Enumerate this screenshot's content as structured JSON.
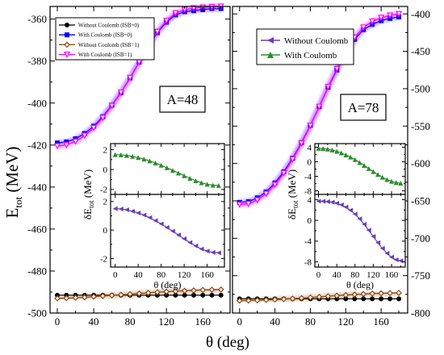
{
  "figure": {
    "xlabel": "θ (deg)",
    "ylabel_main": "E",
    "ylabel_sub": "tot",
    "ylabel_unit": " (MeV)"
  },
  "chart_data": [
    {
      "type": "line",
      "panel": "main-left",
      "annotation": "A=48",
      "xlim": [
        -8,
        190
      ],
      "ylim": [
        -500,
        -354
      ],
      "xticks": [
        0,
        40,
        80,
        120,
        160
      ],
      "yticks": [
        -500,
        -480,
        -460,
        -440,
        -420,
        -400,
        -380,
        -360
      ],
      "legend_position": "top-left",
      "series": [
        {
          "name": "Without Coulomb (ISB=0)",
          "color": "#000000",
          "marker": "circle",
          "x": [
            0,
            10,
            20,
            30,
            40,
            50,
            60,
            70,
            80,
            90,
            100,
            110,
            120,
            130,
            140,
            150,
            160,
            170,
            180
          ],
          "y": [
            -491.5,
            -491.5,
            -491.5,
            -491.5,
            -491.5,
            -491.5,
            -491.5,
            -491.5,
            -491.5,
            -491.5,
            -491.5,
            -491.5,
            -491.5,
            -491.5,
            -491.5,
            -491.5,
            -491.5,
            -491.5,
            -491.5
          ]
        },
        {
          "name": "With Coulomb (ISB=0)",
          "color": "#0000ff",
          "marker": "square",
          "x": [
            0,
            10,
            20,
            30,
            40,
            50,
            60,
            70,
            80,
            90,
            100,
            110,
            120,
            130,
            140,
            150,
            160,
            170,
            180
          ],
          "y": [
            -419,
            -418.5,
            -417,
            -414.5,
            -411,
            -406.5,
            -401,
            -395,
            -388,
            -380.5,
            -373,
            -366.5,
            -361.5,
            -358,
            -356.5,
            -356,
            -355.5,
            -355,
            -355
          ]
        },
        {
          "name": "Without Coulomb (ISB=1)",
          "color": "#8b4513",
          "marker": "diamond",
          "x": [
            0,
            10,
            20,
            30,
            40,
            50,
            60,
            70,
            80,
            90,
            100,
            110,
            120,
            130,
            140,
            150,
            160,
            170,
            180
          ],
          "y": [
            -493,
            -492.9,
            -492.7,
            -492.5,
            -492.2,
            -491.9,
            -491.6,
            -491.3,
            -491,
            -490.7,
            -490.4,
            -490.1,
            -489.8,
            -489.6,
            -489.4,
            -489.2,
            -489,
            -488.9,
            -488.8
          ]
        },
        {
          "name": "With Coulomb (ISB=1)",
          "color": "#ff00ff",
          "marker": "triangle-down",
          "x": [
            0,
            10,
            20,
            30,
            40,
            50,
            60,
            70,
            80,
            90,
            100,
            110,
            120,
            130,
            140,
            150,
            160,
            170,
            180
          ],
          "y": [
            -420.5,
            -420,
            -418.3,
            -415.5,
            -411.8,
            -407,
            -401.3,
            -395,
            -388,
            -380.5,
            -372.8,
            -366,
            -360.8,
            -357.2,
            -355.5,
            -354.8,
            -354.4,
            -354.2,
            -354
          ]
        }
      ]
    },
    {
      "type": "line",
      "panel": "main-right",
      "annotation": "A=78",
      "xlim": [
        -8,
        190
      ],
      "ylim": [
        -800,
        -390
      ],
      "xticks": [
        0,
        40,
        80,
        120,
        160
      ],
      "yticks": [
        -800,
        -750,
        -700,
        -650,
        -600,
        -550,
        -500,
        -450,
        -400
      ],
      "legend_position": "top-left",
      "series": [
        {
          "name": "",
          "color": "#000000",
          "marker": "circle",
          "x": [
            0,
            10,
            20,
            30,
            40,
            50,
            60,
            70,
            80,
            90,
            100,
            110,
            120,
            130,
            140,
            150,
            160,
            170,
            180
          ],
          "y": [
            -781,
            -781,
            -781,
            -781,
            -781,
            -781,
            -781,
            -781,
            -781,
            -781,
            -781,
            -781,
            -781,
            -781,
            -781,
            -781,
            -781,
            -781,
            -781
          ]
        },
        {
          "name": "",
          "color": "#0000ff",
          "marker": "square",
          "x": [
            0,
            10,
            20,
            30,
            40,
            50,
            60,
            70,
            80,
            90,
            100,
            110,
            120,
            130,
            140,
            150,
            160,
            170,
            180
          ],
          "y": [
            -652,
            -651,
            -646,
            -638,
            -626,
            -611,
            -593,
            -572,
            -549,
            -524,
            -498,
            -475,
            -453,
            -434,
            -421,
            -414,
            -409,
            -406,
            -404
          ]
        },
        {
          "name": "",
          "color": "#8b4513",
          "marker": "diamond",
          "x": [
            0,
            10,
            20,
            30,
            40,
            50,
            60,
            70,
            80,
            90,
            100,
            110,
            120,
            130,
            140,
            150,
            160,
            170,
            180
          ],
          "y": [
            -783.5,
            -783.3,
            -783,
            -782.5,
            -782,
            -781.4,
            -780.7,
            -780,
            -779.2,
            -778.4,
            -777.5,
            -776.7,
            -775.9,
            -775.2,
            -774.6,
            -774,
            -773.6,
            -773.3,
            -773
          ]
        },
        {
          "name": "",
          "color": "#ff00ff",
          "marker": "triangle-down",
          "x": [
            0,
            10,
            20,
            30,
            40,
            50,
            60,
            70,
            80,
            90,
            100,
            110,
            120,
            130,
            140,
            150,
            160,
            170,
            180
          ],
          "y": [
            -655,
            -654,
            -649,
            -640.5,
            -628.5,
            -613,
            -594.5,
            -573,
            -549.5,
            -524,
            -497.5,
            -473.5,
            -451,
            -431.5,
            -418,
            -410,
            -405,
            -402,
            -400
          ]
        }
      ],
      "legend_entries": [
        {
          "name": "Without Coulomb",
          "color": "#6a3fb5",
          "marker": "triangle-left"
        },
        {
          "name": "With Coulomb",
          "color": "#2e8b2e",
          "marker": "triangle-up"
        }
      ]
    },
    {
      "type": "line",
      "panel": "inset-left-top",
      "xlim": [
        -8,
        190
      ],
      "ylim": [
        -2.5,
        2.6
      ],
      "xticks": [
        0,
        40,
        80,
        120,
        160
      ],
      "yticks": [
        -2,
        0,
        2
      ],
      "series": [
        {
          "name": "With Coulomb",
          "color": "#2e8b2e",
          "marker": "triangle-up",
          "x": [
            0,
            10,
            20,
            30,
            40,
            50,
            60,
            70,
            80,
            90,
            100,
            110,
            120,
            130,
            140,
            150,
            160,
            170,
            180
          ],
          "y": [
            1.5,
            1.48,
            1.42,
            1.32,
            1.2,
            1.05,
            0.87,
            0.66,
            0.43,
            0.18,
            -0.08,
            -0.35,
            -0.62,
            -0.88,
            -1.12,
            -1.33,
            -1.48,
            -1.57,
            -1.6
          ]
        }
      ]
    },
    {
      "type": "line",
      "panel": "inset-left-bottom",
      "xlim": [
        -8,
        190
      ],
      "ylim": [
        -2.6,
        2.5
      ],
      "xticks": [
        0,
        40,
        80,
        120,
        160
      ],
      "yticks": [
        -2,
        0,
        2
      ],
      "xlabel": "θ (deg)",
      "ylabel_main": "δE",
      "ylabel_sub": "tot",
      "ylabel_unit": " (MeV)",
      "series": [
        {
          "name": "Without Coulomb",
          "color": "#6a3fb5",
          "marker": "triangle-left",
          "x": [
            0,
            10,
            20,
            30,
            40,
            50,
            60,
            70,
            80,
            90,
            100,
            110,
            120,
            130,
            140,
            150,
            160,
            170,
            180
          ],
          "y": [
            1.5,
            1.48,
            1.42,
            1.32,
            1.2,
            1.05,
            0.87,
            0.66,
            0.43,
            0.18,
            -0.08,
            -0.35,
            -0.62,
            -0.88,
            -1.12,
            -1.33,
            -1.48,
            -1.57,
            -1.6
          ]
        }
      ]
    },
    {
      "type": "line",
      "panel": "inset-right-top",
      "xlim": [
        -8,
        190
      ],
      "ylim": [
        -9,
        5
      ],
      "xticks": [
        0,
        40,
        80,
        120,
        160
      ],
      "yticks": [
        -8,
        -4,
        0,
        4
      ],
      "series": [
        {
          "name": "With Coulomb",
          "color": "#2e8b2e",
          "marker": "triangle-up",
          "x": [
            0,
            10,
            20,
            30,
            40,
            50,
            60,
            70,
            80,
            90,
            100,
            110,
            120,
            130,
            140,
            150,
            160,
            170,
            180
          ],
          "y": [
            3.7,
            3.65,
            3.5,
            3.25,
            2.9,
            2.45,
            1.9,
            1.3,
            0.6,
            -0.2,
            -1.0,
            -1.85,
            -2.7,
            -3.5,
            -4.25,
            -4.9,
            -5.4,
            -5.75,
            -5.9
          ]
        }
      ]
    },
    {
      "type": "line",
      "panel": "inset-right-bottom",
      "xlim": [
        -8,
        190
      ],
      "ylim": [
        -9,
        5
      ],
      "xticks": [
        0,
        40,
        80,
        120,
        160
      ],
      "yticks": [
        -8,
        -4,
        0,
        4
      ],
      "xlabel": "θ (deg)",
      "ylabel_main": "δE",
      "ylabel_sub": "tot",
      "ylabel_unit": " (MeV)",
      "series": [
        {
          "name": "Without Coulomb",
          "color": "#6a3fb5",
          "marker": "triangle-left",
          "x": [
            0,
            10,
            20,
            30,
            40,
            50,
            60,
            70,
            80,
            90,
            100,
            110,
            120,
            130,
            140,
            150,
            160,
            170,
            180
          ],
          "y": [
            3.7,
            3.68,
            3.62,
            3.5,
            3.3,
            3.0,
            2.55,
            1.95,
            1.2,
            0.3,
            -0.75,
            -1.9,
            -3.1,
            -4.3,
            -5.4,
            -6.35,
            -7.1,
            -7.6,
            -7.8
          ]
        }
      ]
    }
  ]
}
